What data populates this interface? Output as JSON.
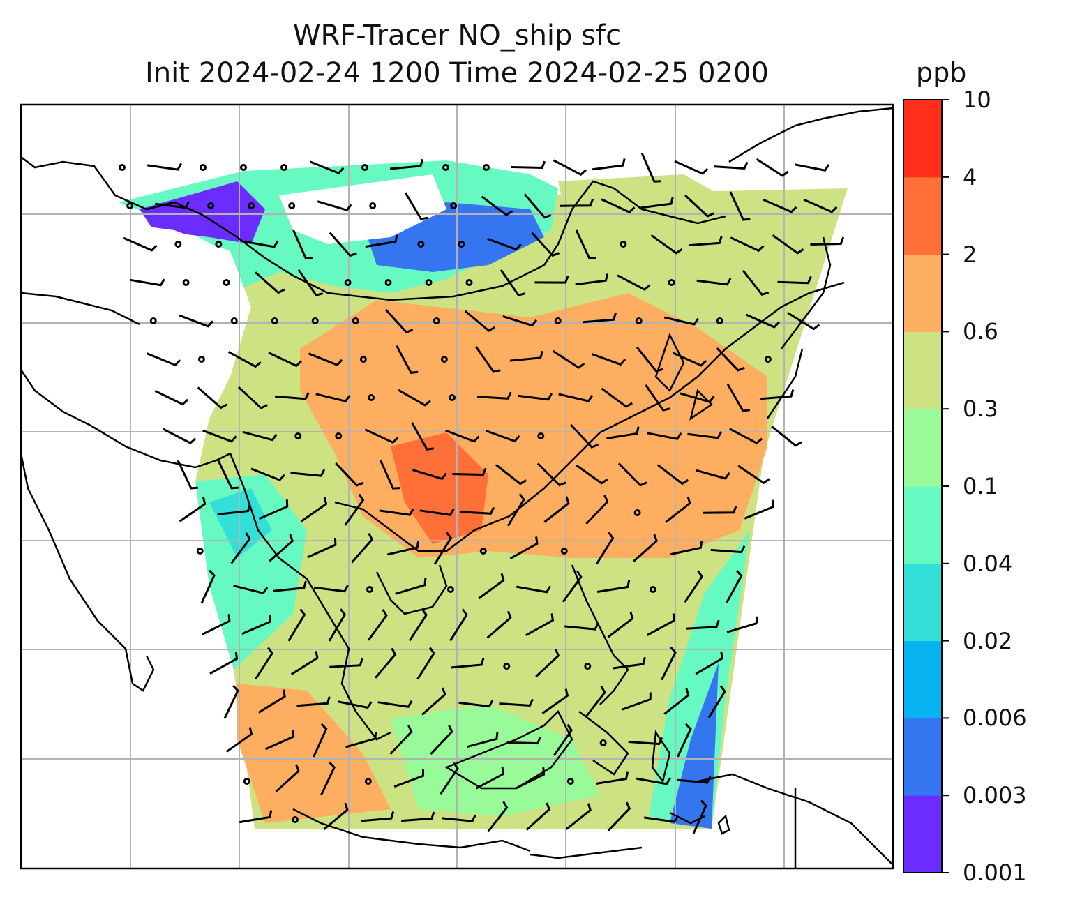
{
  "title": {
    "line1": "WRF-Tracer NO_ship sfc",
    "line2": "Init 2024-02-24 1200 Time 2024-02-25 0200"
  },
  "colorbar": {
    "unit": "ppb",
    "tick_labels": [
      "0.001",
      "0.003",
      "0.006",
      "0.02",
      "0.04",
      "0.1",
      "0.3",
      "0.6",
      "2",
      "4",
      "10"
    ],
    "colors": [
      "#6a2cff",
      "#3575f0",
      "#08b4ef",
      "#33e0d8",
      "#66f9c2",
      "#99fa9a",
      "#cde283",
      "#fdae61",
      "#ff7038",
      "#ff2f1a"
    ]
  },
  "map": {
    "field": "NO_ship surface concentration",
    "region": "Southeast Asia / South China Sea / East Asia",
    "gridlines": true,
    "wind_barbs": true
  }
}
